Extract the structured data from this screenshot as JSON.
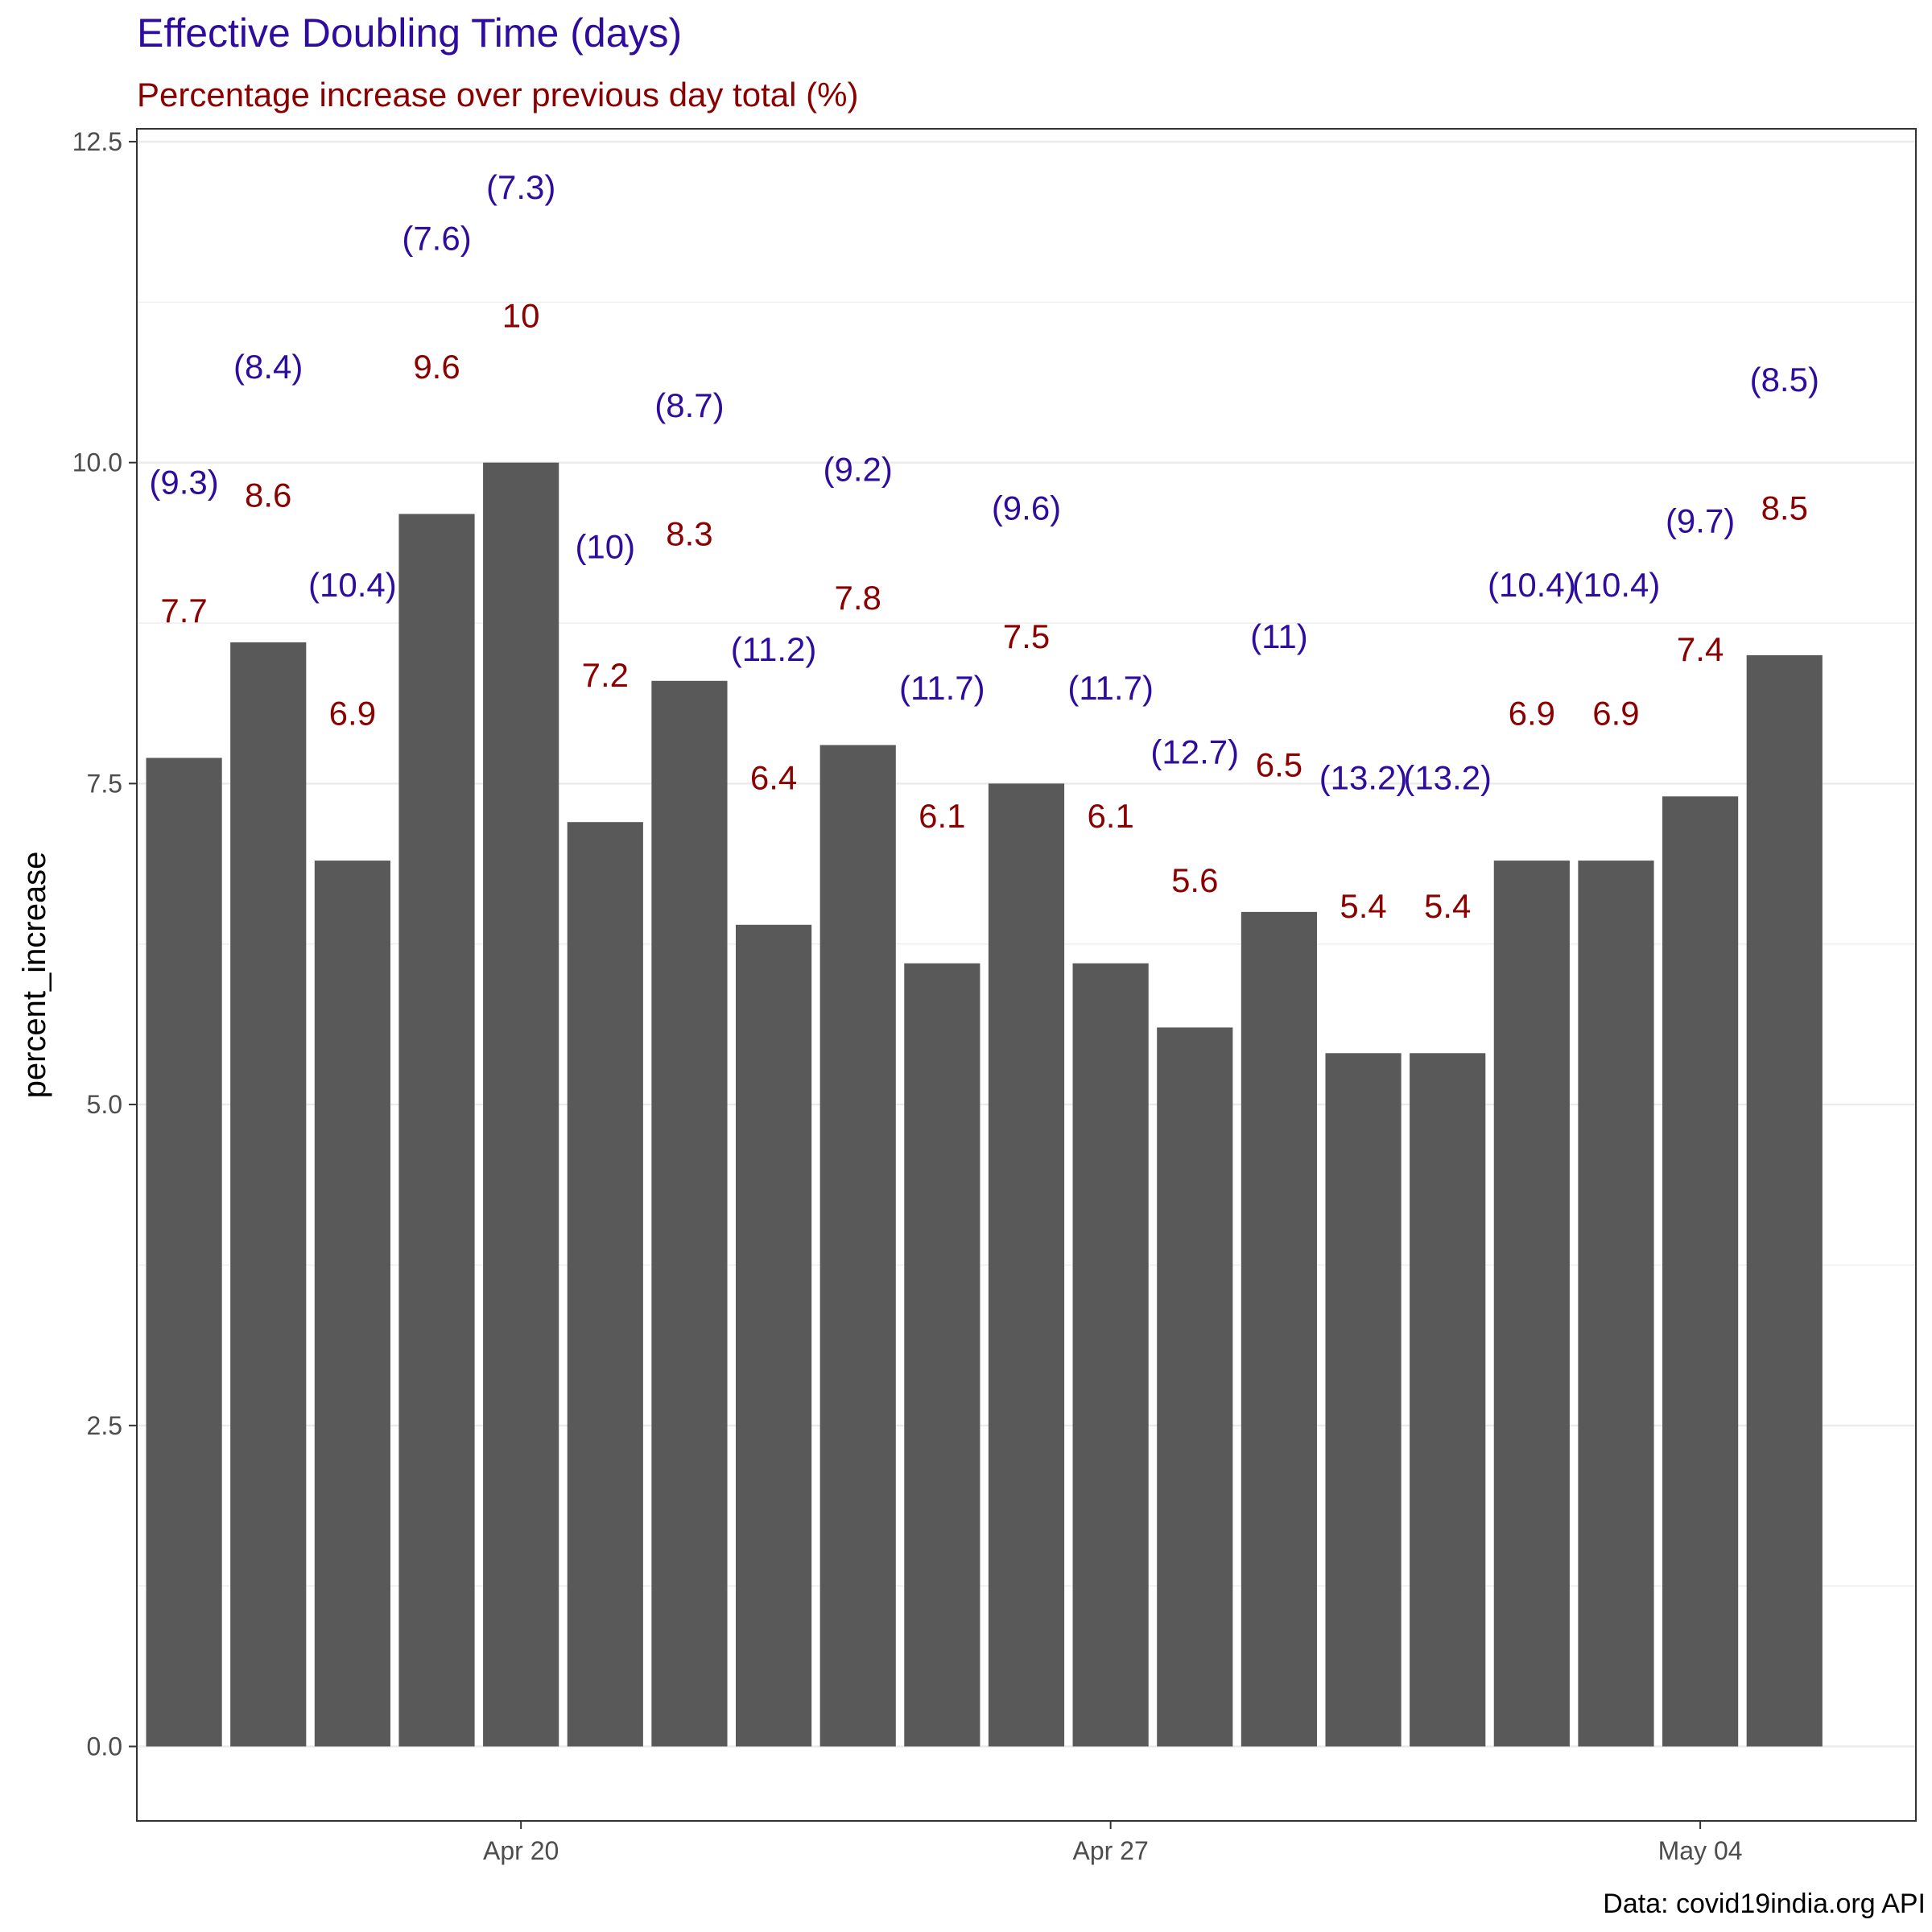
{
  "chart_data": {
    "type": "bar",
    "title": "Effective Doubling Time (days)",
    "subtitle": "Percentage increase over previous day total (%)",
    "xlabel": "",
    "ylabel": "percent_increase",
    "caption": "Data: covid19india.org API",
    "categories": [
      "2020-04-16",
      "2020-04-17",
      "2020-04-18",
      "2020-04-19",
      "2020-04-20",
      "2020-04-21",
      "2020-04-22",
      "2020-04-23",
      "2020-04-24",
      "2020-04-25",
      "2020-04-26",
      "2020-04-27",
      "2020-04-28",
      "2020-04-29",
      "2020-04-30",
      "2020-05-01",
      "2020-05-02",
      "2020-05-03",
      "2020-05-04",
      "2020-05-05"
    ],
    "values": [
      7.7,
      8.6,
      6.9,
      9.6,
      10,
      7.2,
      8.3,
      6.4,
      7.8,
      6.1,
      7.5,
      6.1,
      5.6,
      6.5,
      5.4,
      5.4,
      6.9,
      6.9,
      7.4,
      8.5
    ],
    "value_labels": [
      "7.7",
      "8.6",
      "6.9",
      "9.6",
      "10",
      "7.2",
      "8.3",
      "6.4",
      "7.8",
      "6.1",
      "7.5",
      "6.1",
      "5.6",
      "6.5",
      "5.4",
      "5.4",
      "6.9",
      "6.9",
      "7.4",
      "8.5"
    ],
    "doubling_labels": [
      "(9.3)",
      "(8.4)",
      "(10.4)",
      "(7.6)",
      "(7.3)",
      "(10)",
      "(8.7)",
      "(11.2)",
      "(9.2)",
      "(11.7)",
      "(9.6)",
      "(11.7)",
      "(12.7)",
      "(11)",
      "(13.2)",
      "(13.2)",
      "(10.4)",
      "(10.4)",
      "(9.7)",
      "(8.5)"
    ],
    "x_ticks": [
      {
        "date": "2020-04-20",
        "label": "Apr 20"
      },
      {
        "date": "2020-04-27",
        "label": "Apr 27"
      },
      {
        "date": "2020-05-04",
        "label": "May 04"
      }
    ],
    "y_ticks": [
      0,
      2.5,
      5,
      7.5,
      10,
      12.5
    ],
    "y_tick_labels": [
      "0.0",
      "2.5",
      "5.0",
      "7.5",
      "10.0",
      "12.5"
    ],
    "ylim": [
      -0.58,
      12.6
    ],
    "grid": true,
    "colors": {
      "bar": "#595959",
      "value_label": "#8b0000",
      "doubling_label": "#2e0d9e",
      "title": "#2e0d9e",
      "subtitle": "#8b0000",
      "grid": "#ebebeb",
      "axis": "#333333"
    }
  }
}
